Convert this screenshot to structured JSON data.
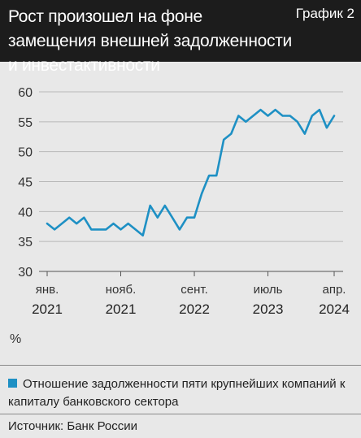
{
  "header": {
    "title": "Рост произошел на фоне замещения внешней задолженности и инвестактивности",
    "badge": "График 2"
  },
  "colors": {
    "header_bg": "#1c1c1c",
    "line": "#1e90c4",
    "background": "#e8e8e8",
    "grid": "#b8b8b8"
  },
  "chart_data": {
    "type": "line",
    "title": "Рост произошел на фоне замещения внешней задолженности и инвестактивности",
    "ylabel": "%",
    "ylim": [
      30,
      60
    ],
    "yticks": [
      30,
      35,
      40,
      45,
      50,
      55,
      60
    ],
    "grid": true,
    "xticks": [
      {
        "month": "янв.",
        "year": "2021",
        "index": 0
      },
      {
        "month": "нояб.",
        "year": "2021",
        "index": 10
      },
      {
        "month": "сент.",
        "year": "2022",
        "index": 20
      },
      {
        "month": "июль",
        "year": "2023",
        "index": 30
      },
      {
        "month": "апр.",
        "year": "2024",
        "index": 39
      }
    ],
    "series": [
      {
        "name": "Отношение задолженности пяти крупнейших компаний к капиталу банковского сектора",
        "values": [
          38,
          37,
          38,
          39,
          38,
          39,
          37,
          37,
          37,
          38,
          37,
          38,
          37,
          36,
          41,
          39,
          41,
          39,
          37,
          39,
          39,
          43,
          46,
          46,
          52,
          53,
          56,
          55,
          56,
          57,
          56,
          57,
          56,
          56,
          55,
          53,
          56,
          57,
          54,
          56
        ]
      }
    ]
  },
  "legend": {
    "text": "Отношение задолженности пяти крупнейших компаний к капиталу банковского сектора"
  },
  "source": "Источник: Банк России"
}
